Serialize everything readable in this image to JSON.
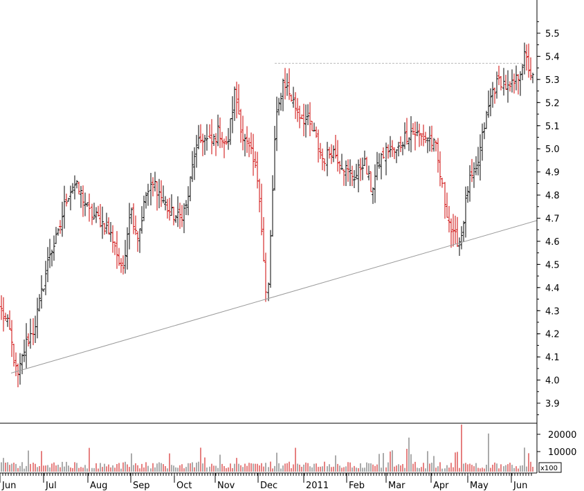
{
  "chart_data": [
    {
      "type": "ohlc-bar",
      "title": "",
      "xlabel": "",
      "ylabel": "",
      "ylim": [
        3.8,
        5.6
      ],
      "y_ticks": [
        3.9,
        4.0,
        4.1,
        4.2,
        4.3,
        4.4,
        4.5,
        4.6,
        4.7,
        4.8,
        4.9,
        5.0,
        5.1,
        5.2,
        5.3,
        5.4,
        5.5
      ],
      "months": [
        "Jun",
        "Jul",
        "Aug",
        "Sep",
        "Oct",
        "Nov",
        "Dec",
        "2011",
        "Feb",
        "Mar",
        "Apr",
        "May",
        "Jun"
      ],
      "colors": {
        "up": "#000000",
        "down": "#cc0000",
        "trendline": "#999999",
        "resistance": "#bbbbbb"
      },
      "weekly_closes": [
        4.3,
        4.22,
        4.0,
        4.15,
        4.22,
        4.38,
        4.55,
        4.62,
        4.78,
        4.85,
        4.8,
        4.72,
        4.7,
        4.66,
        4.6,
        4.45,
        4.75,
        4.62,
        4.8,
        4.85,
        4.78,
        4.72,
        4.7,
        4.75,
        4.98,
        5.05,
        5.02,
        5.08,
        5.0,
        5.25,
        5.05,
        4.98,
        4.85,
        4.3,
        5.1,
        5.3,
        5.22,
        5.15,
        5.12,
        5.05,
        4.95,
        5.0,
        4.95,
        4.9,
        4.88,
        4.95,
        4.82,
        4.95,
        5.0,
        4.98,
        5.05,
        5.08,
        5.05,
        5.05,
        5.0,
        4.78,
        4.62,
        4.6,
        4.85,
        4.9,
        5.1,
        5.25,
        5.3,
        5.25,
        5.3,
        5.4,
        5.3
      ],
      "volume": {
        "unit": "x100",
        "y_ticks": [
          10000,
          20000
        ],
        "spikes": [
          {
            "month": "Mar",
            "value": 17000
          },
          {
            "month": "Apr",
            "value": 24000
          },
          {
            "month": "May",
            "value": 19000
          }
        ]
      },
      "annotations": [
        "ascending support trendline",
        "dotted resistance line at 5.37"
      ]
    }
  ]
}
